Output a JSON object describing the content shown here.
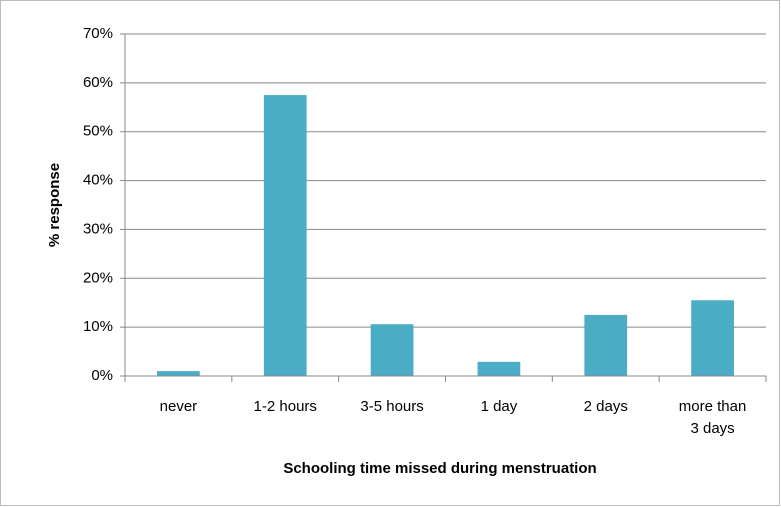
{
  "chart_data": {
    "type": "bar",
    "x_label": "Schooling time missed during menstruation",
    "y_label": "% response",
    "categories": [
      "never",
      "1-2 hours",
      "3-5 hours",
      "1 day",
      "2 days",
      "more than 3 days"
    ],
    "values": [
      1,
      57.5,
      10.6,
      2.9,
      12.5,
      15.5
    ],
    "color": "#4bacc6",
    "ylim": [
      0,
      70
    ],
    "yticks": [
      {
        "value": 0,
        "label": "0%"
      },
      {
        "value": 10,
        "label": "10%"
      },
      {
        "value": 20,
        "label": "20%"
      },
      {
        "value": 30,
        "label": "30%"
      },
      {
        "value": 40,
        "label": "40%"
      },
      {
        "value": 50,
        "label": "50%"
      },
      {
        "value": 60,
        "label": "60%"
      },
      {
        "value": 70,
        "label": "70%"
      }
    ],
    "grid": true
  }
}
